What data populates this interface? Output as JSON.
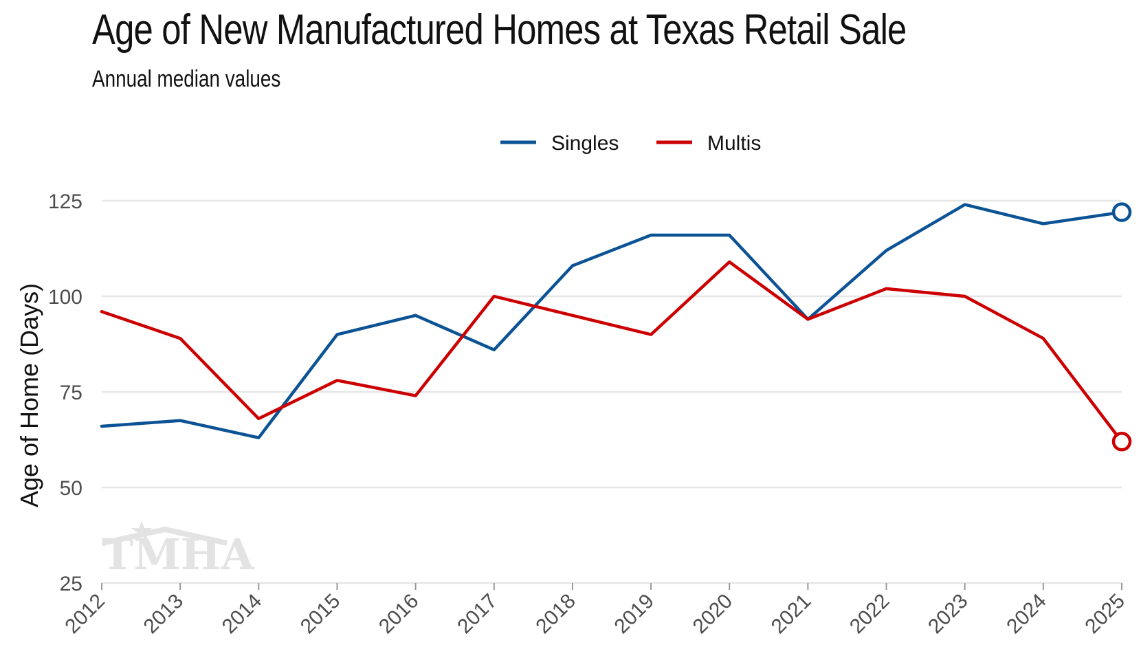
{
  "header": {
    "title": "Age of New Manufactured Homes at Texas Retail Sale",
    "subtitle": "Annual median values"
  },
  "watermark": {
    "text": "TMHA"
  },
  "chart_data": {
    "type": "line",
    "title": "Age of New Manufactured Homes at Texas Retail Sale",
    "subtitle": "Annual median values",
    "xlabel": "",
    "ylabel": "Age of Home (Days)",
    "categories": [
      "2012",
      "2013",
      "2014",
      "2015",
      "2016",
      "2017",
      "2018",
      "2019",
      "2020",
      "2021",
      "2022",
      "2023",
      "2024",
      "2025"
    ],
    "ylim": [
      25,
      130
    ],
    "yticks": [
      25,
      50,
      75,
      100,
      125
    ],
    "grid": true,
    "legend_position": "top",
    "series": [
      {
        "name": "Singles",
        "color": "#0b5394",
        "values": [
          66,
          67.5,
          63,
          90,
          95,
          86,
          108,
          116,
          116,
          94,
          112,
          124,
          119,
          122
        ]
      },
      {
        "name": "Multis",
        "color": "#cc0000",
        "values": [
          96,
          89,
          68,
          78,
          74,
          100,
          95,
          90,
          109,
          94,
          102,
          100,
          89,
          62
        ]
      }
    ]
  }
}
